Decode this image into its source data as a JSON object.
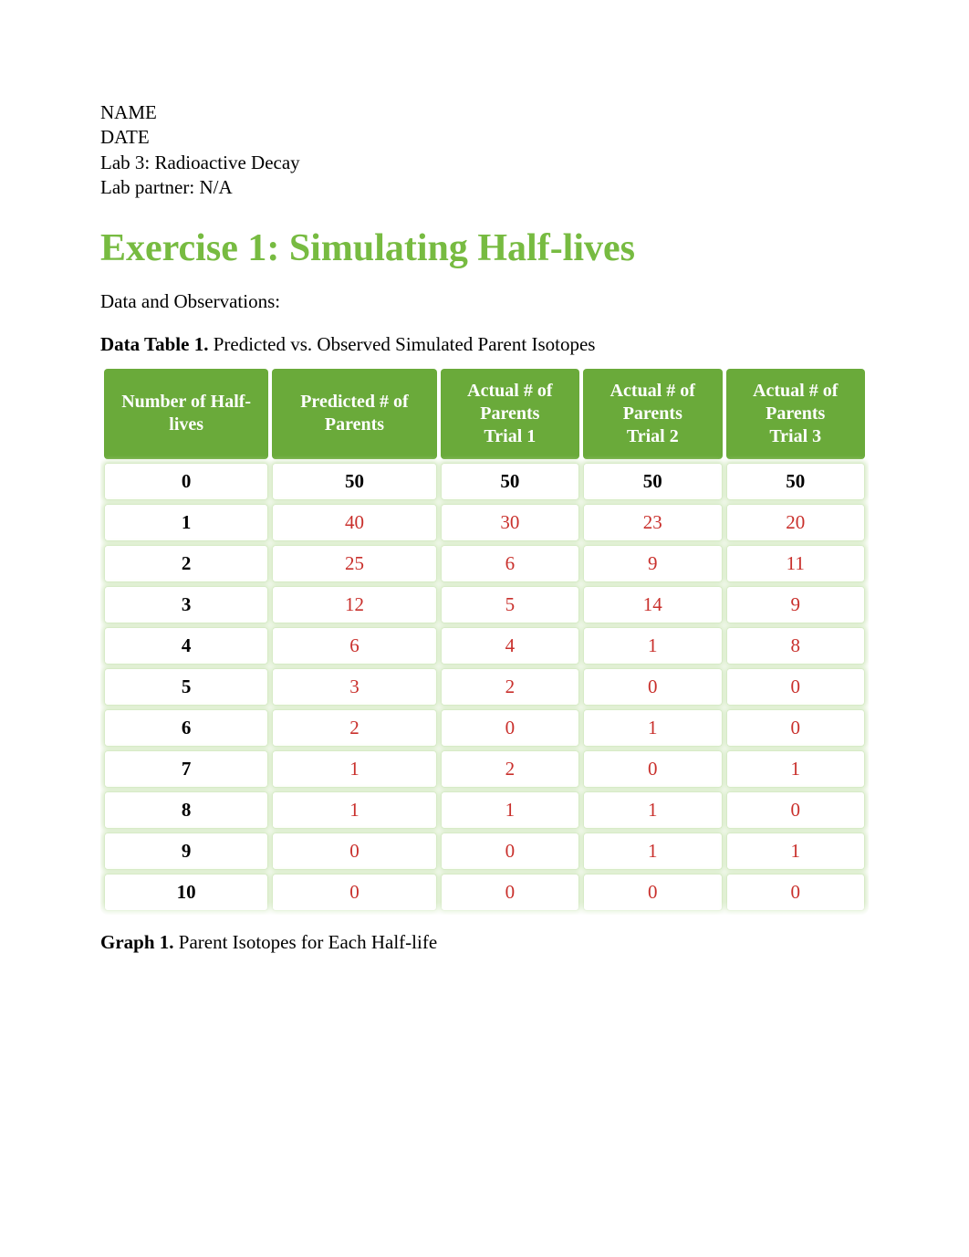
{
  "meta": {
    "name_label": "NAME",
    "date_label": "DATE",
    "lab_title": "Lab 3: Radioactive Decay",
    "partner_label": "Lab partner: N/A"
  },
  "heading": {
    "text": "Exercise 1: Simulating Half-lives",
    "color": "#77bb41"
  },
  "observations_label": "Data and Observations:",
  "table_caption": {
    "bold": "Data Table 1.",
    "rest": " Predicted vs. Observed Simulated Parent Isotopes"
  },
  "graph_caption": {
    "bold": "Graph 1.",
    "rest": " Parent Isotopes for Each Half-life"
  },
  "table": {
    "type": "table",
    "header_bg": "#6aaa3a",
    "header_text_color": "#ffffff",
    "row_bg": "#ffffff",
    "row_outline_color": "#d7ebc7",
    "body_text_color_label": "#000000",
    "body_text_color_value": "#c9302c",
    "first_row_value_color": "#000000",
    "first_row_font_weight": "bold",
    "columns": [
      {
        "label": "Number of Half-lives",
        "width": "22%"
      },
      {
        "label": "Predicted # of Parents",
        "width": "22%"
      },
      {
        "label_line1": "Actual # of",
        "label_line2": "Parents",
        "label_line3": "Trial 1",
        "width": "18.6%"
      },
      {
        "label_line1": "Actual # of",
        "label_line2": "Parents",
        "label_line3": "Trial 2",
        "width": "18.6%"
      },
      {
        "label_line1": "Actual # of",
        "label_line2": "Parents",
        "label_line3": "Trial 3",
        "width": "18.6%"
      }
    ],
    "rows": [
      {
        "halflife": "0",
        "predicted": "50",
        "t1": "50",
        "t2": "50",
        "t3": "50"
      },
      {
        "halflife": "1",
        "predicted": "40",
        "t1": "30",
        "t2": "23",
        "t3": "20"
      },
      {
        "halflife": "2",
        "predicted": "25",
        "t1": "6",
        "t2": "9",
        "t3": "11"
      },
      {
        "halflife": "3",
        "predicted": "12",
        "t1": "5",
        "t2": "14",
        "t3": "9"
      },
      {
        "halflife": "4",
        "predicted": "6",
        "t1": "4",
        "t2": "1",
        "t3": "8"
      },
      {
        "halflife": "5",
        "predicted": "3",
        "t1": "2",
        "t2": "0",
        "t3": "0"
      },
      {
        "halflife": "6",
        "predicted": "2",
        "t1": "0",
        "t2": "1",
        "t3": "0"
      },
      {
        "halflife": "7",
        "predicted": "1",
        "t1": "2",
        "t2": "0",
        "t3": "1"
      },
      {
        "halflife": "8",
        "predicted": "1",
        "t1": "1",
        "t2": "1",
        "t3": "0"
      },
      {
        "halflife": "9",
        "predicted": "0",
        "t1": "0",
        "t2": "1",
        "t3": "1"
      },
      {
        "halflife": "10",
        "predicted": "0",
        "t1": "0",
        "t2": "0",
        "t3": "0"
      }
    ]
  }
}
